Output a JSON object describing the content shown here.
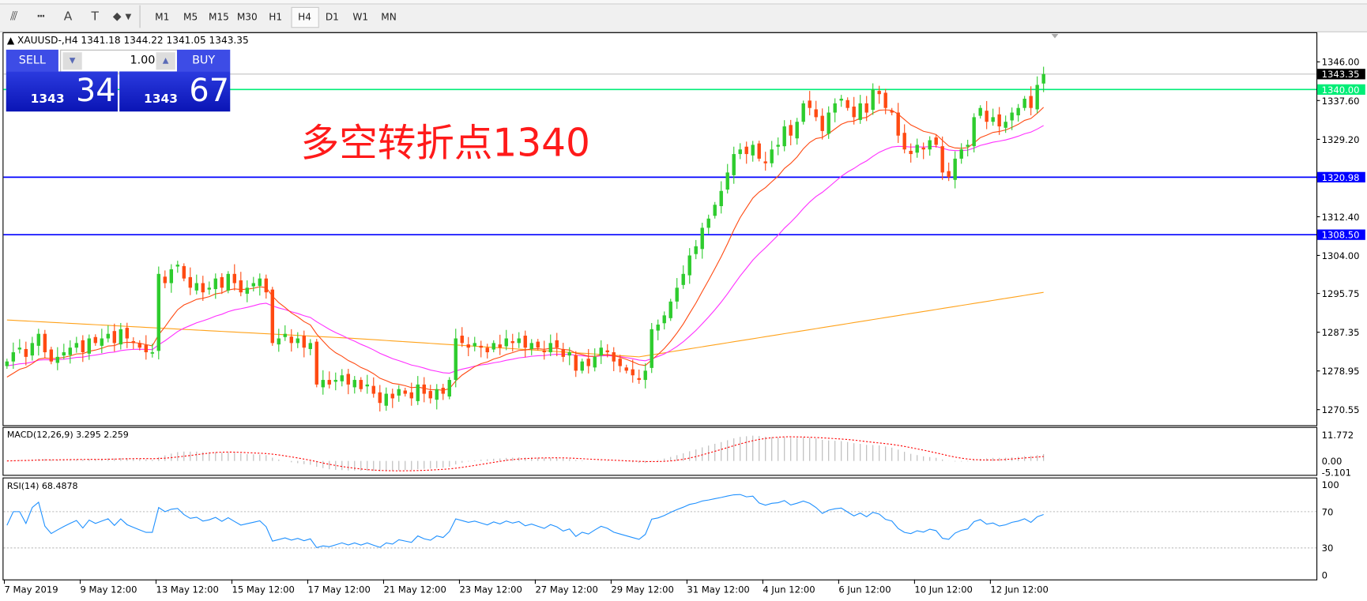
{
  "toolbar": {
    "icons": [
      "fibonacci-fan-icon",
      "fibonacci-channel-icon",
      "text-icon",
      "text-label-icon",
      "arrows-dropdown-icon"
    ],
    "icon_glyphs": [
      "⫻",
      "┅",
      "A",
      "T",
      "⬥"
    ],
    "timeframes": [
      "M1",
      "M5",
      "M15",
      "M30",
      "H1",
      "H4",
      "D1",
      "W1",
      "MN"
    ],
    "active_timeframe": "H4"
  },
  "chart": {
    "symbol_line": "XAUUSD-,H4  1341.18 1344.22 1341.05 1343.35",
    "annotation": "多空转折点1340",
    "colors": {
      "bull": "#2ecc2e",
      "bear": "#ff4a12",
      "fast_ma": "#ff4a12",
      "mid_ma": "#ff2fff",
      "slow_ma": "#ffa21a",
      "support": "#0000ff",
      "pivot": "#00ee77",
      "macd_signal": "#ff0000",
      "macd_hist": "#b8b8b8",
      "rsi": "#1e90ff"
    },
    "price_ticks": [
      "1346.00",
      "1337.60",
      "1329.20",
      "1312.40",
      "1304.00",
      "1295.75",
      "1287.35",
      "1278.95",
      "1270.55"
    ],
    "current_price": "1343.35",
    "pivot_line": "1340.00",
    "support_lines": [
      "1320.98",
      "1308.50"
    ],
    "date_labels": [
      "7 May 2019",
      "9 May 12:00",
      "13 May 12:00",
      "15 May 12:00",
      "17 May 12:00",
      "21 May 12:00",
      "23 May 12:00",
      "27 May 12:00",
      "29 May 12:00",
      "31 May 12:00",
      "4 Jun 12:00",
      "6 Jun 12:00",
      "10 Jun 12:00",
      "12 Jun 12:00"
    ]
  },
  "trade_panel": {
    "sell_label": "SELL",
    "buy_label": "BUY",
    "lots": "1.00",
    "sell_big": "1343",
    "sell_pips": "34",
    "buy_big": "1343",
    "buy_pips": "67"
  },
  "macd": {
    "label": "MACD(12,26,9) 3.295 2.259",
    "ticks": [
      "11.772",
      "0.00",
      "-5.101"
    ]
  },
  "rsi": {
    "label": "RSI(14) 68.4878",
    "ticks": [
      "100",
      "70",
      "30",
      "0"
    ]
  },
  "chart_data": {
    "type": "candlestick",
    "timeframe": "H4",
    "ylim": [
      1270.55,
      1346.0
    ],
    "slow_ma": [
      [
        0,
        1290
      ],
      [
        55,
        1286
      ],
      [
        100,
        1282
      ],
      [
        164,
        1296
      ]
    ],
    "close": [
      1281,
      1283,
      1284,
      1282,
      1285,
      1287,
      1283,
      1281,
      1282,
      1283,
      1284,
      1285,
      1283,
      1286,
      1285,
      1286,
      1287,
      1285,
      1288,
      1286,
      1285,
      1284,
      1283,
      1283,
      1300,
      1298,
      1301,
      1302,
      1299,
      1297,
      1298,
      1296,
      1297,
      1299,
      1297,
      1300,
      1298,
      1296,
      1297,
      1298,
      1299,
      1296,
      1285,
      1286,
      1287,
      1285,
      1286,
      1284,
      1285,
      1276,
      1277,
      1276,
      1277,
      1278,
      1276,
      1277,
      1275,
      1276,
      1274,
      1272,
      1274,
      1273,
      1275,
      1274,
      1273,
      1276,
      1274,
      1273,
      1275,
      1274,
      1277,
      1286,
      1285,
      1284,
      1285,
      1284,
      1283,
      1285,
      1284,
      1286,
      1285,
      1286,
      1284,
      1285,
      1284,
      1283,
      1285,
      1284,
      1282,
      1283,
      1279,
      1281,
      1280,
      1282,
      1284,
      1283,
      1281,
      1280,
      1279,
      1278,
      1277,
      1279,
      1288,
      1289,
      1291,
      1294,
      1297,
      1300,
      1304,
      1306,
      1310,
      1312,
      1315,
      1318,
      1322,
      1326,
      1327,
      1326,
      1328,
      1325,
      1324,
      1327,
      1328,
      1332,
      1330,
      1333,
      1337,
      1336,
      1334,
      1331,
      1335,
      1337,
      1338,
      1336,
      1334,
      1337,
      1335,
      1340,
      1339,
      1336,
      1335,
      1330,
      1327,
      1326,
      1328,
      1327,
      1329,
      1328,
      1322,
      1321,
      1325,
      1327,
      1328,
      1334,
      1336,
      1333,
      1334,
      1332,
      1333,
      1335,
      1336,
      1338,
      1336,
      1341,
      1343.35
    ]
  }
}
